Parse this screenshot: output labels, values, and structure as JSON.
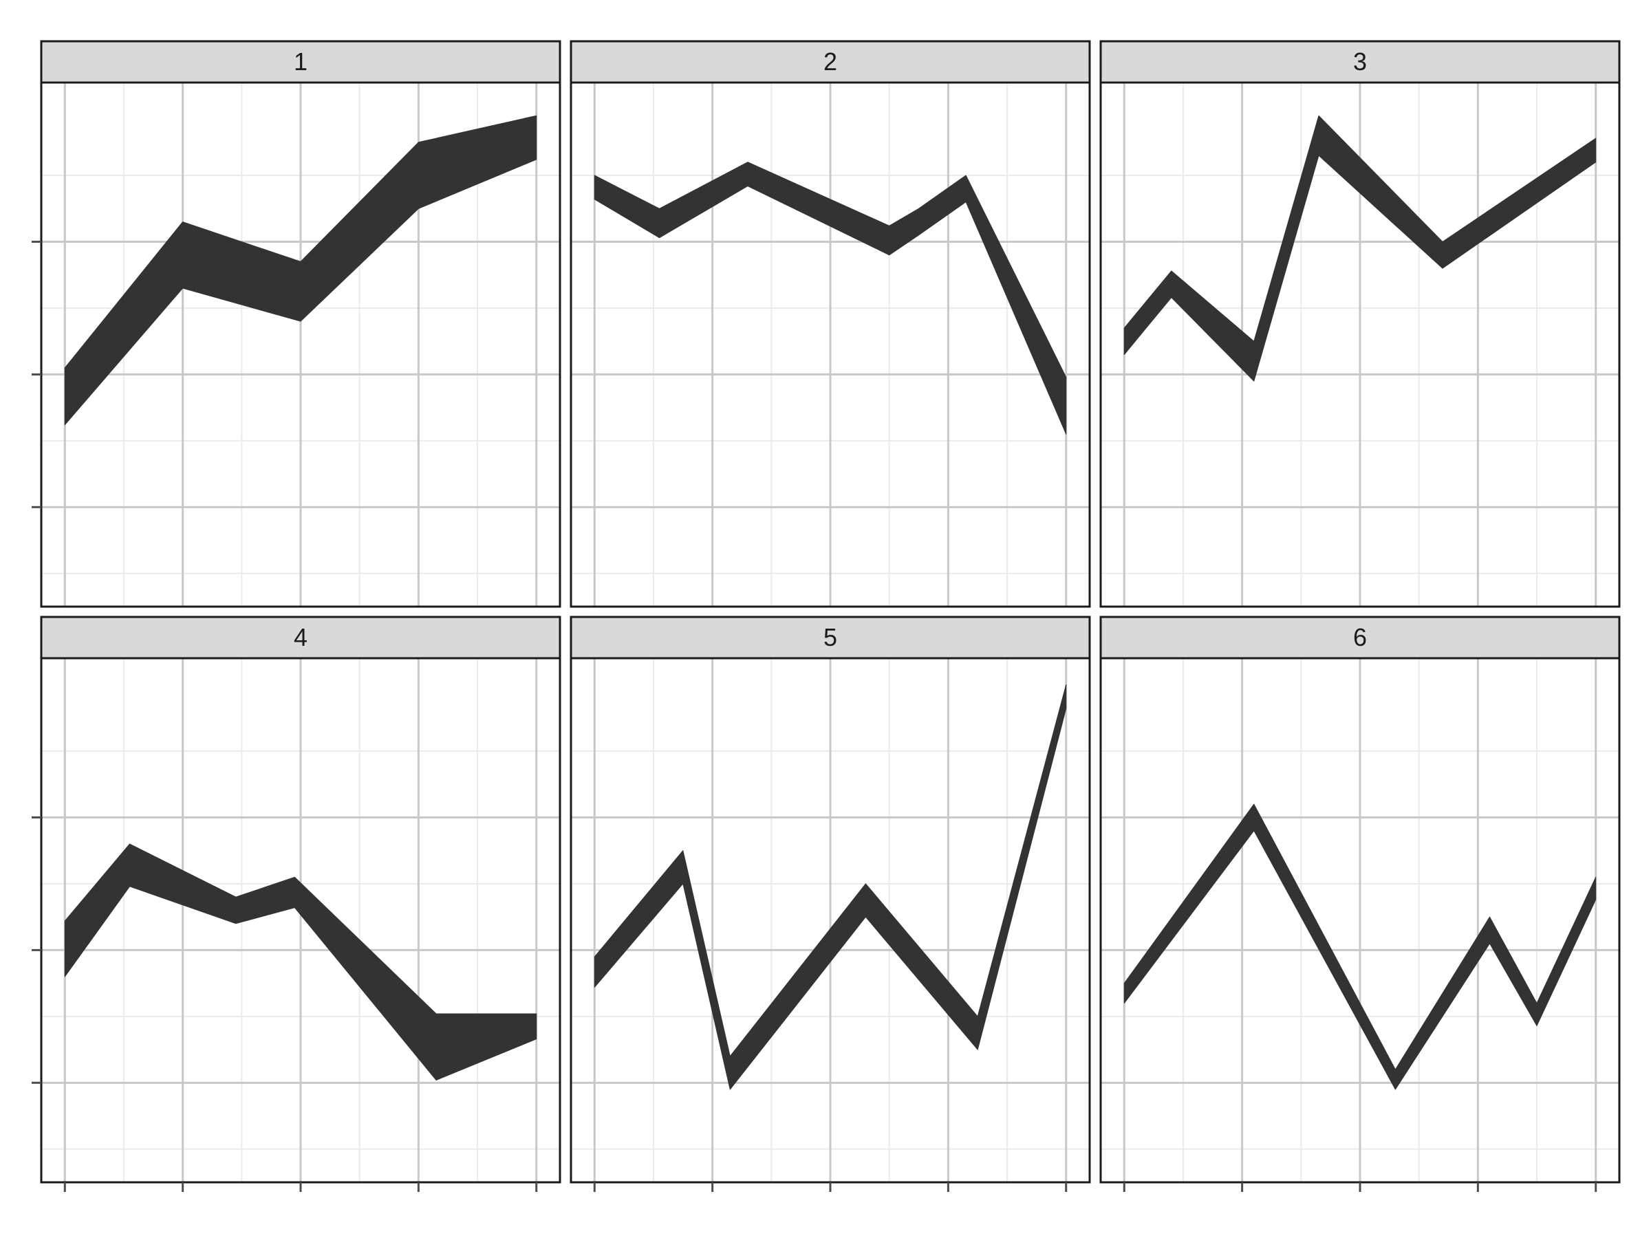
{
  "chart_data": {
    "type": "area",
    "title": "",
    "xlabel": "",
    "ylabel": "",
    "facets": [
      "1",
      "2",
      "3",
      "4",
      "5",
      "6"
    ],
    "xlim": [
      0.8,
      5.2
    ],
    "ylim": [
      -0.75,
      3.2
    ],
    "x_major_ticks": [
      1,
      2,
      3,
      4,
      5
    ],
    "y_major_ticks": [
      0,
      1,
      2
    ],
    "grid": true,
    "legend": "none",
    "colors": {
      "ribbon": "#333333",
      "panel_border": "#1a1a1a",
      "strip_fill": "#d9d9d9",
      "major_grid": "#c8c8c8",
      "minor_grid": "#ebebeb",
      "tick": "#4d4d4d"
    },
    "panels": [
      {
        "label": "1",
        "x": [
          1,
          2,
          3,
          4,
          5
        ],
        "upper": [
          1.05,
          2.15,
          1.85,
          2.75,
          2.95
        ],
        "lower": [
          0.62,
          1.65,
          1.4,
          2.25,
          2.62
        ]
      },
      {
        "label": "2",
        "x": [
          1,
          1.55,
          2.3,
          3.5,
          3.75,
          4.15,
          5
        ],
        "upper": [
          2.5,
          2.25,
          2.6,
          2.12,
          2.25,
          2.5,
          0.98
        ],
        "lower": [
          2.32,
          2.03,
          2.42,
          1.9,
          2.05,
          2.3,
          0.55
        ]
      },
      {
        "label": "3",
        "x": [
          1,
          1.4,
          2.1,
          2.65,
          3.7,
          5
        ],
        "upper": [
          1.35,
          1.78,
          1.25,
          2.95,
          2.0,
          2.78
        ],
        "lower": [
          1.15,
          1.58,
          0.95,
          2.65,
          1.8,
          2.6
        ]
      },
      {
        "label": "4",
        "x": [
          1,
          1.55,
          2.45,
          2.95,
          4.15,
          5
        ],
        "upper": [
          1.22,
          1.8,
          1.4,
          1.55,
          0.52,
          0.52
        ],
        "lower": [
          0.8,
          1.48,
          1.2,
          1.32,
          0.02,
          0.33
        ]
      },
      {
        "label": "5",
        "x": [
          1,
          1.75,
          2.15,
          3.3,
          4.25,
          5
        ],
        "upper": [
          0.95,
          1.75,
          0.2,
          1.5,
          0.5,
          3.0
        ],
        "lower": [
          0.72,
          1.5,
          -0.05,
          1.25,
          0.25,
          2.82
        ]
      },
      {
        "label": "6",
        "x": [
          1,
          2.1,
          3.3,
          4.1,
          4.5,
          5
        ],
        "upper": [
          0.75,
          2.1,
          0.1,
          1.25,
          0.6,
          1.55
        ],
        "lower": [
          0.6,
          1.9,
          -0.05,
          1.05,
          0.43,
          1.38
        ]
      }
    ]
  }
}
